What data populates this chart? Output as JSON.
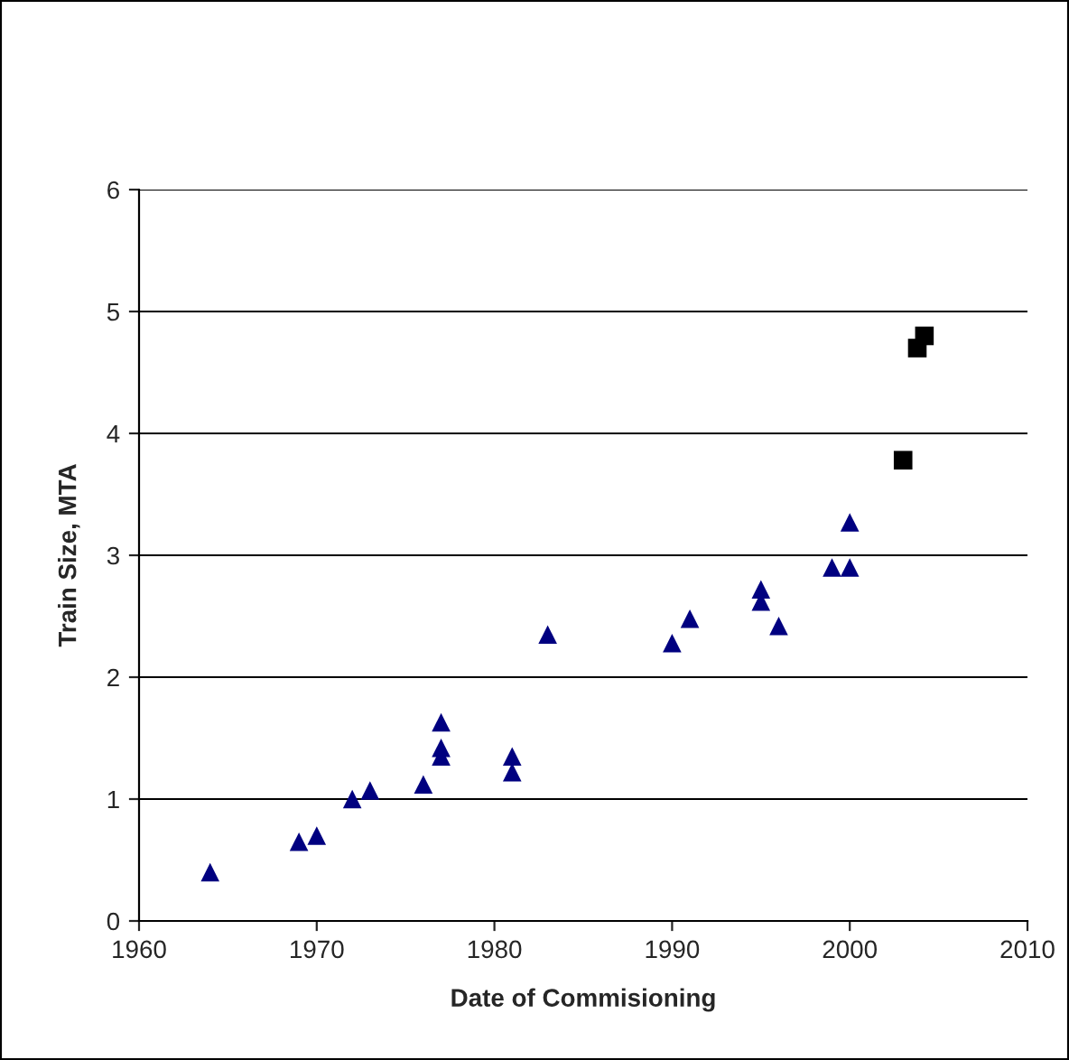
{
  "chart_data": {
    "type": "scatter",
    "xlabel": "Date of Commisioning",
    "ylabel": "Train Size, MTA",
    "xlim": [
      1960,
      2010
    ],
    "xticks": [
      1960,
      1970,
      1980,
      1990,
      2000,
      2010
    ],
    "ylim": [
      0,
      6
    ],
    "yticks": [
      0,
      1,
      2,
      3,
      4,
      5,
      6
    ],
    "grid": "y",
    "series": [
      {
        "color": "#000080",
        "marker": "triangle",
        "x": [
          1964,
          1969,
          1970,
          1972,
          1973,
          1976,
          1977,
          1977,
          1977,
          1981,
          1981,
          1983,
          1990,
          1991,
          1995,
          1995,
          1996,
          1999,
          2000,
          2000
        ],
        "values": [
          0.4,
          0.65,
          0.7,
          1.0,
          1.07,
          1.12,
          1.63,
          1.42,
          1.35,
          1.35,
          1.22,
          2.35,
          2.28,
          2.48,
          2.72,
          2.62,
          2.42,
          2.9,
          2.9,
          3.27
        ]
      },
      {
        "color": "#000000",
        "marker": "square",
        "x": [
          2003,
          2003.8,
          2004.2
        ],
        "values": [
          3.78,
          4.7,
          4.8
        ]
      }
    ]
  }
}
